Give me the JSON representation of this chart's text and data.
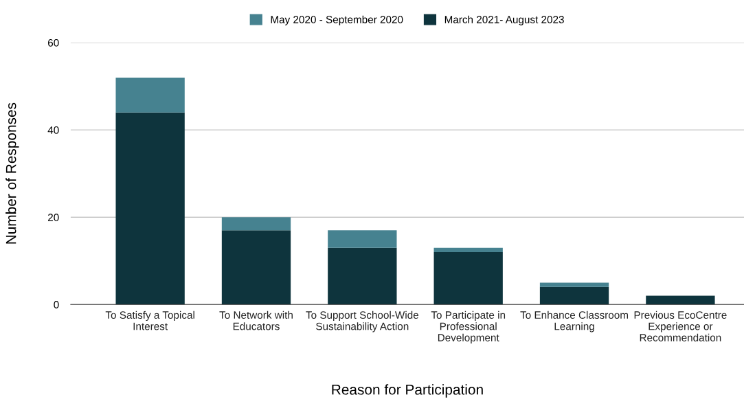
{
  "chart_data": {
    "type": "bar",
    "stacked": true,
    "xlabel": "Reason for Participation",
    "ylabel": "Number of Responses",
    "categories": [
      "To Satisfy a Topical Interest",
      "To Network with Educators",
      "To Support School-Wide Sustainability Action",
      "To Participate in Professional Development",
      "To Enhance Classroom Learning",
      "Previous EcoCentre Experience or Recommendation"
    ],
    "series": [
      {
        "name": "March 2021- August 2023",
        "color": "#0e343d",
        "values": [
          44,
          17,
          13,
          12,
          4,
          2
        ]
      },
      {
        "name": "May 2020 - September 2020",
        "color": "#468290",
        "values": [
          8,
          3,
          4,
          1,
          1,
          0
        ]
      }
    ],
    "ylim": [
      0,
      60
    ],
    "yticks": [
      0,
      20,
      40,
      60
    ],
    "grid": "y",
    "legend": "top"
  }
}
